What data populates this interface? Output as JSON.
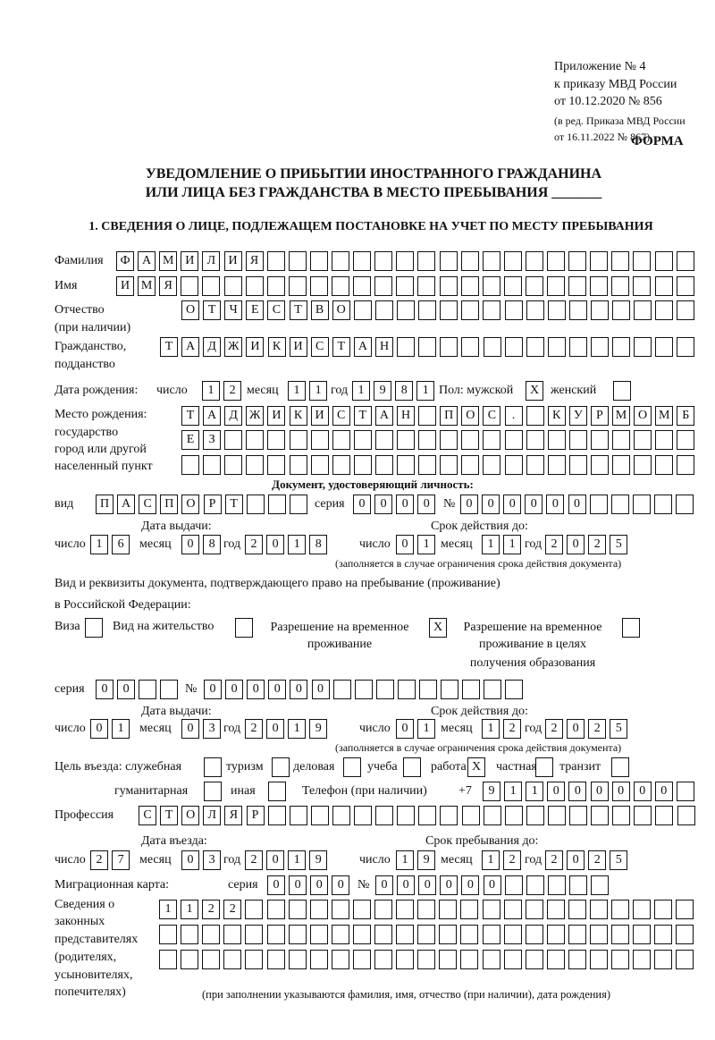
{
  "header": {
    "line1": "Приложение № 4",
    "line2": "к приказу МВД России",
    "line3": "от 10.12.2020 № 856",
    "line4": "(в ред. Приказа МВД России",
    "line5": "от 16.11.2022 № 867)",
    "form": "ФОРМА",
    "title1": "УВЕДОМЛЕНИЕ О ПРИБЫТИИ ИНОСТРАННОГО ГРАЖДАНИНА",
    "title2": "ИЛИ ЛИЦА БЕЗ ГРАЖДАНСТВА В МЕСТО ПРЕБЫВАНИЯ _______",
    "section1": "1. СВЕДЕНИЯ О ЛИЦЕ, ПОДЛЕЖАЩЕМ ПОСТАНОВКЕ НА УЧЕТ ПО МЕСТУ ПРЕБЫВАНИЯ"
  },
  "labels": {
    "surname": "Фамилия",
    "name": "Имя",
    "patronymic": "Отчество",
    "patronymic2": "(при наличии)",
    "citizenship": "Гражданство,",
    "citizenship2": "подданство",
    "birth_date": "Дата рождения:",
    "day": "число",
    "month": "месяц",
    "year": "год",
    "sex": "Пол: мужской",
    "female": "женский",
    "birthplace1": "Место рождения:",
    "birthplace2": "государство",
    "birthplace3": "город или другой",
    "birthplace4": "населенный пункт",
    "id_doc": "Документ, удостоверяющий личность:",
    "kind": "вид",
    "series": "серия",
    "number": "№",
    "issue_date": "Дата выдачи:",
    "valid_until": "Срок действия до:",
    "validity_note": "(заполняется в случае ограничения срока действия документа)",
    "right_doc1": "Вид и реквизиты документа, подтверждающего право на пребывание (проживание)",
    "right_doc2": "в Российской Федерации:",
    "visa": "Виза",
    "residence": "Вид на жительство",
    "temp1": "Разрешение на временное",
    "temp2": "проживание",
    "edu1": "Разрешение на временное",
    "edu2": "проживание в целях",
    "edu3": "получения образования",
    "purpose": "Цель въезда: служебная",
    "tourism": "туризм",
    "business": "деловая",
    "study": "учеба",
    "work": "работа",
    "private": "частная",
    "transit": "транзит",
    "humanitarian": "гуманитарная",
    "other": "иная",
    "phone": "Телефон (при наличии)",
    "phone_prefix": "+7",
    "profession": "Профессия",
    "entry_date": "Дата въезда:",
    "stay_until": "Срок пребывания до:",
    "migration_card": "Миграционная карта:",
    "rep1": "Сведения о",
    "rep2": "законных",
    "rep3": "представителях",
    "rep4": "(родителях,",
    "rep5": "усыновителях,",
    "rep6": "попечителях)",
    "rep_note": "(при заполнении указываются фамилия, имя, отчество (при наличии), дата рождения)"
  },
  "fields": {
    "surname": [
      "Ф",
      "А",
      "М",
      "И",
      "Л",
      "И",
      "Я",
      "",
      "",
      "",
      "",
      "",
      "",
      "",
      "",
      "",
      "",
      "",
      "",
      "",
      "",
      "",
      "",
      "",
      "",
      "",
      ""
    ],
    "name": [
      "И",
      "М",
      "Я",
      "",
      "",
      "",
      "",
      "",
      "",
      "",
      "",
      "",
      "",
      "",
      "",
      "",
      "",
      "",
      "",
      "",
      "",
      "",
      "",
      "",
      "",
      "",
      ""
    ],
    "patronymic": [
      "О",
      "Т",
      "Ч",
      "Е",
      "С",
      "Т",
      "В",
      "О",
      "",
      "",
      "",
      "",
      "",
      "",
      "",
      "",
      "",
      "",
      "",
      "",
      "",
      "",
      "",
      ""
    ],
    "citizenship": [
      "Т",
      "А",
      "Д",
      "Ж",
      "И",
      "К",
      "И",
      "С",
      "Т",
      "А",
      "Н",
      "",
      "",
      "",
      "",
      "",
      "",
      "",
      "",
      "",
      "",
      "",
      "",
      "",
      ""
    ],
    "birth_day": [
      "1",
      "2"
    ],
    "birth_month": [
      "1",
      "1"
    ],
    "birth_year": [
      "1",
      "9",
      "8",
      "1"
    ],
    "sex_male": [
      "X"
    ],
    "sex_female": [
      ""
    ],
    "birthplace_1": [
      "Т",
      "А",
      "Д",
      "Ж",
      "И",
      "К",
      "И",
      "С",
      "Т",
      "А",
      "Н",
      "",
      "П",
      "О",
      "С",
      ".",
      "",
      "К",
      "У",
      "Р",
      "М",
      "О",
      "М",
      "Б"
    ],
    "birthplace_2": [
      "Е",
      "З",
      "",
      "",
      "",
      "",
      "",
      "",
      "",
      "",
      "",
      "",
      "",
      "",
      "",
      "",
      "",
      "",
      "",
      "",
      "",
      "",
      "",
      ""
    ],
    "birthplace_3": [
      "",
      "",
      "",
      "",
      "",
      "",
      "",
      "",
      "",
      "",
      "",
      "",
      "",
      "",
      "",
      "",
      "",
      "",
      "",
      "",
      "",
      "",
      "",
      ""
    ],
    "doc_kind": [
      "П",
      "А",
      "С",
      "П",
      "О",
      "Р",
      "Т",
      "",
      "",
      ""
    ],
    "doc_series": [
      "0",
      "0",
      "0",
      "0"
    ],
    "doc_number": [
      "0",
      "0",
      "0",
      "0",
      "0",
      "0",
      "",
      "",
      "",
      "",
      ""
    ],
    "doc_issue_day": [
      "1",
      "6"
    ],
    "doc_issue_month": [
      "0",
      "8"
    ],
    "doc_issue_year": [
      "2",
      "0",
      "1",
      "8"
    ],
    "doc_valid_day": [
      "0",
      "1"
    ],
    "doc_valid_month": [
      "1",
      "1"
    ],
    "doc_valid_year": [
      "2",
      "0",
      "2",
      "5"
    ],
    "right_visa": [
      ""
    ],
    "right_residence": [
      ""
    ],
    "right_temp": [
      "X"
    ],
    "right_edu": [
      ""
    ],
    "right_series": [
      "0",
      "0",
      "",
      ""
    ],
    "right_number": [
      "0",
      "0",
      "0",
      "0",
      "0",
      "0",
      "",
      "",
      "",
      "",
      "",
      "",
      "",
      "",
      ""
    ],
    "right_issue_day": [
      "0",
      "1"
    ],
    "right_issue_month": [
      "0",
      "3"
    ],
    "right_issue_year": [
      "2",
      "0",
      "1",
      "9"
    ],
    "right_valid_day": [
      "0",
      "1"
    ],
    "right_valid_month": [
      "1",
      "2"
    ],
    "right_valid_year": [
      "2",
      "0",
      "2",
      "5"
    ],
    "purpose_service": [
      ""
    ],
    "purpose_tourism": [
      ""
    ],
    "purpose_business": [
      ""
    ],
    "purpose_study": [
      ""
    ],
    "purpose_work": [
      "X"
    ],
    "purpose_private": [
      ""
    ],
    "purpose_transit": [
      ""
    ],
    "purpose_humanitarian": [
      ""
    ],
    "purpose_other": [
      ""
    ],
    "phone": [
      "9",
      "1",
      "1",
      "0",
      "0",
      "0",
      "0",
      "0",
      "0",
      ""
    ],
    "profession": [
      "С",
      "Т",
      "О",
      "Л",
      "Я",
      "Р",
      "",
      "",
      "",
      "",
      "",
      "",
      "",
      "",
      "",
      "",
      "",
      "",
      "",
      "",
      "",
      "",
      "",
      "",
      "",
      ""
    ],
    "entry_day": [
      "2",
      "7"
    ],
    "entry_month": [
      "0",
      "3"
    ],
    "entry_year": [
      "2",
      "0",
      "1",
      "9"
    ],
    "stay_day": [
      "1",
      "9"
    ],
    "stay_month": [
      "1",
      "2"
    ],
    "stay_year": [
      "2",
      "0",
      "2",
      "5"
    ],
    "mig_series": [
      "0",
      "0",
      "0",
      "0"
    ],
    "mig_number": [
      "0",
      "0",
      "0",
      "0",
      "0",
      "0",
      "",
      "",
      "",
      "",
      ""
    ],
    "rep_1": [
      "1",
      "1",
      "2",
      "2",
      "",
      "",
      "",
      "",
      "",
      "",
      "",
      "",
      "",
      "",
      "",
      "",
      "",
      "",
      "",
      "",
      "",
      "",
      "",
      "",
      ""
    ],
    "rep_2": [
      "",
      "",
      "",
      "",
      "",
      "",
      "",
      "",
      "",
      "",
      "",
      "",
      "",
      "",
      "",
      "",
      "",
      "",
      "",
      "",
      "",
      "",
      "",
      "",
      ""
    ],
    "rep_3": [
      "",
      "",
      "",
      "",
      "",
      "",
      "",
      "",
      "",
      "",
      "",
      "",
      "",
      "",
      "",
      "",
      "",
      "",
      "",
      "",
      "",
      "",
      "",
      "",
      ""
    ]
  }
}
